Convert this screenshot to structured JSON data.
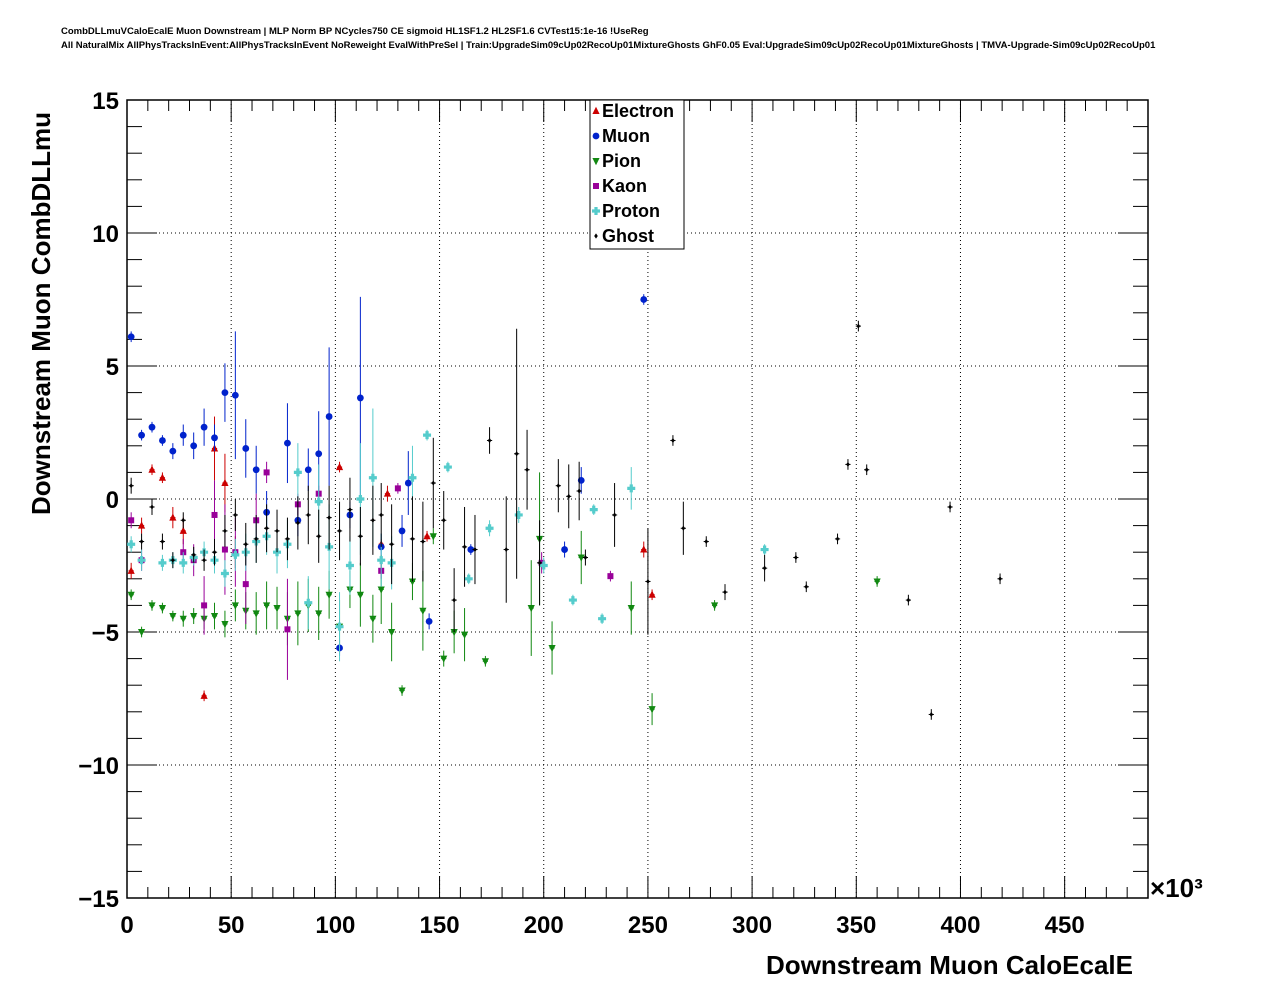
{
  "chart_data": {
    "type": "scatter",
    "title_line1": "CombDLLmuVCaloEcalE Muon Downstream | MLP Norm BP NCycles750 CE sigmoid HL1SF1.2 HL2SF1.6 CVTest15:1e-16 !UseReg",
    "title_line2": "All NaturalMix AllPhysTracksInEvent:AllPhysTracksInEvent NoReweight EvalWithPreSel | Train:UpgradeSim09cUp02RecoUp01MixtureGhosts GhF0.05 Eval:UpgradeSim09cUp02RecoUp01MixtureGhosts | TMVA-Upgrade-Sim09cUp02RecoUp01",
    "xlabel": "Downstream Muon CaloEcalE",
    "ylabel": "Downstream Muon CombDLLmu",
    "x_exponent_label": "×10³",
    "xlim": [
      0,
      490
    ],
    "ylim": [
      -15,
      15
    ],
    "xticks": [
      "0",
      "50",
      "100",
      "150",
      "200",
      "250",
      "300",
      "350",
      "400",
      "450"
    ],
    "xtick_values": [
      0,
      50,
      100,
      150,
      200,
      250,
      300,
      350,
      400,
      450
    ],
    "yticks": [
      "15",
      "10",
      "5",
      "0",
      "−5",
      "−10",
      "−15"
    ],
    "ytick_values": [
      15,
      10,
      5,
      0,
      -5,
      -10,
      -15
    ],
    "grid": true,
    "legend_position": "top-center",
    "series": [
      {
        "name": "Electron",
        "color": "#cc0000",
        "marker": "triangle-up",
        "points": [
          [
            2,
            -2.7,
            0.3
          ],
          [
            7,
            -1.0,
            0.3
          ],
          [
            12,
            1.1,
            0.2
          ],
          [
            17,
            0.8,
            0.2
          ],
          [
            22,
            -0.7,
            0.4
          ],
          [
            27,
            -1.2,
            0.5
          ],
          [
            37,
            -7.4,
            0.2
          ],
          [
            42,
            1.9,
            1.2
          ],
          [
            47,
            0.6,
            1.1
          ],
          [
            52,
            -2.0,
            0.6
          ],
          [
            102,
            1.2,
            0.2
          ],
          [
            122,
            -1.7,
            0.2
          ],
          [
            125,
            0.2,
            0.3
          ],
          [
            144,
            -1.4,
            0.2
          ],
          [
            248,
            -1.9,
            0.3
          ],
          [
            252,
            -3.6,
            0.2
          ]
        ]
      },
      {
        "name": "Muon",
        "color": "#0022cc",
        "marker": "circle",
        "points": [
          [
            2,
            6.1,
            0.2
          ],
          [
            7,
            2.4,
            0.2
          ],
          [
            12,
            2.7,
            0.2
          ],
          [
            17,
            2.2,
            0.2
          ],
          [
            22,
            1.8,
            0.3
          ],
          [
            27,
            2.4,
            0.4
          ],
          [
            32,
            2.0,
            0.5
          ],
          [
            37,
            2.7,
            0.7
          ],
          [
            42,
            2.3,
            0.5
          ],
          [
            47,
            4.0,
            1.1
          ],
          [
            52,
            3.9,
            2.4
          ],
          [
            57,
            1.9,
            1.1
          ],
          [
            62,
            1.1,
            0.9
          ],
          [
            67,
            -0.5,
            0.8
          ],
          [
            77,
            2.1,
            1.5
          ],
          [
            82,
            -0.8,
            0.6
          ],
          [
            87,
            1.1,
            0.8
          ],
          [
            92,
            1.7,
            1.6
          ],
          [
            97,
            3.1,
            2.6
          ],
          [
            102,
            -5.6,
            0.3
          ],
          [
            107,
            -0.6,
            0.5
          ],
          [
            112,
            3.8,
            3.8
          ],
          [
            122,
            -1.8,
            0.5
          ],
          [
            132,
            -1.2,
            0.6
          ],
          [
            135,
            0.6,
            1.2
          ],
          [
            145,
            -4.6,
            0.3
          ],
          [
            165,
            -1.9,
            0.2
          ],
          [
            210,
            -1.9,
            0.3
          ],
          [
            218,
            0.7,
            0.5
          ],
          [
            248,
            7.5,
            0.2
          ]
        ]
      },
      {
        "name": "Pion",
        "color": "#118811",
        "marker": "triangle-down",
        "points": [
          [
            2,
            -3.6,
            0.2
          ],
          [
            7,
            -5.0,
            0.2
          ],
          [
            12,
            -4.0,
            0.2
          ],
          [
            17,
            -4.1,
            0.2
          ],
          [
            22,
            -4.4,
            0.2
          ],
          [
            27,
            -4.5,
            0.3
          ],
          [
            32,
            -4.4,
            0.3
          ],
          [
            37,
            -4.5,
            0.4
          ],
          [
            42,
            -4.4,
            0.5
          ],
          [
            47,
            -4.7,
            0.5
          ],
          [
            52,
            -4.0,
            0.6
          ],
          [
            57,
            -4.2,
            0.7
          ],
          [
            62,
            -4.3,
            0.8
          ],
          [
            67,
            -4.0,
            0.9
          ],
          [
            72,
            -4.1,
            0.8
          ],
          [
            77,
            -4.5,
            1.0
          ],
          [
            82,
            -4.3,
            1.2
          ],
          [
            87,
            -4.0,
            1.0
          ],
          [
            92,
            -4.3,
            1.0
          ],
          [
            97,
            -3.6,
            0.9
          ],
          [
            102,
            -4.8,
            1.0
          ],
          [
            107,
            -3.4,
            0.7
          ],
          [
            112,
            -3.6,
            1.2
          ],
          [
            118,
            -4.5,
            0.9
          ],
          [
            122,
            -3.4,
            1.3
          ],
          [
            127,
            -5.0,
            1.1
          ],
          [
            132,
            -7.2,
            0.2
          ],
          [
            137,
            -3.1,
            0.7
          ],
          [
            142,
            -4.2,
            1.5
          ],
          [
            147,
            -1.4,
            0.3
          ],
          [
            152,
            -6.0,
            0.3
          ],
          [
            157,
            -5.0,
            0.8
          ],
          [
            162,
            -5.1,
            1.0
          ],
          [
            172,
            -6.1,
            0.2
          ],
          [
            194,
            -4.1,
            1.8
          ],
          [
            198,
            -1.5,
            2.5
          ],
          [
            204,
            -5.6,
            1.0
          ],
          [
            218,
            -2.2,
            1.0
          ],
          [
            242,
            -4.1,
            1.0
          ],
          [
            252,
            -7.9,
            0.6
          ],
          [
            282,
            -4.0,
            0.2
          ],
          [
            360,
            -3.1,
            0.2
          ]
        ]
      },
      {
        "name": "Kaon",
        "color": "#990099",
        "marker": "square",
        "points": [
          [
            2,
            -0.8,
            0.3
          ],
          [
            7,
            -2.3,
            0.4
          ],
          [
            27,
            -2.0,
            0.5
          ],
          [
            32,
            -2.3,
            0.6
          ],
          [
            37,
            -4.0,
            1.1
          ],
          [
            42,
            -0.6,
            1.3
          ],
          [
            47,
            -1.9,
            1.7
          ],
          [
            52,
            -2.0,
            1.3
          ],
          [
            57,
            -3.2,
            1.5
          ],
          [
            62,
            -0.8,
            1.0
          ],
          [
            67,
            1.0,
            0.4
          ],
          [
            77,
            -4.9,
            1.9
          ],
          [
            82,
            -0.2,
            0.4
          ],
          [
            92,
            0.2,
            0.3
          ],
          [
            122,
            -2.7,
            0.3
          ],
          [
            130,
            0.4,
            0.2
          ],
          [
            199,
            -2.4,
            0.4
          ],
          [
            232,
            -2.9,
            0.2
          ]
        ]
      },
      {
        "name": "Proton",
        "color": "#55cccc",
        "marker": "cross",
        "points": [
          [
            2,
            -1.7,
            0.3
          ],
          [
            7,
            -2.3,
            0.4
          ],
          [
            17,
            -2.4,
            0.3
          ],
          [
            22,
            -2.3,
            0.3
          ],
          [
            27,
            -2.4,
            0.4
          ],
          [
            32,
            -2.2,
            0.3
          ],
          [
            37,
            -2.0,
            0.4
          ],
          [
            42,
            -2.3,
            0.5
          ],
          [
            47,
            -2.8,
            0.5
          ],
          [
            52,
            -2.1,
            0.6
          ],
          [
            57,
            -2.0,
            0.7
          ],
          [
            62,
            -1.6,
            0.8
          ],
          [
            67,
            -1.4,
            0.7
          ],
          [
            72,
            -2.0,
            0.8
          ],
          [
            77,
            -1.7,
            0.9
          ],
          [
            82,
            1.0,
            1.1
          ],
          [
            87,
            -3.9,
            1.0
          ],
          [
            92,
            -0.1,
            1.4
          ],
          [
            97,
            -1.8,
            1.6
          ],
          [
            102,
            -4.8,
            1.3
          ],
          [
            107,
            -2.5,
            1.1
          ],
          [
            112,
            0.0,
            2.1
          ],
          [
            118,
            0.8,
            2.6
          ],
          [
            122,
            -2.3,
            1.0
          ],
          [
            127,
            -2.4,
            1.0
          ],
          [
            137,
            0.8,
            1.2
          ],
          [
            144,
            2.4,
            0.2
          ],
          [
            154,
            1.2,
            0.2
          ],
          [
            164,
            -3.0,
            0.2
          ],
          [
            174,
            -1.1,
            0.3
          ],
          [
            188,
            -0.6,
            0.3
          ],
          [
            200,
            -2.5,
            0.3
          ],
          [
            214,
            -3.8,
            0.2
          ],
          [
            224,
            -0.4,
            0.2
          ],
          [
            228,
            -4.5,
            0.2
          ],
          [
            242,
            0.4,
            0.8
          ],
          [
            306,
            -1.9,
            0.2
          ]
        ]
      },
      {
        "name": "Ghost",
        "color": "#000000",
        "marker": "diamond",
        "points": [
          [
            2,
            0.5,
            0.3
          ],
          [
            7,
            -1.6,
            0.3
          ],
          [
            12,
            -0.3,
            0.3
          ],
          [
            17,
            -1.6,
            0.3
          ],
          [
            22,
            -2.3,
            0.3
          ],
          [
            27,
            -0.8,
            0.3
          ],
          [
            32,
            -2.1,
            0.3
          ],
          [
            37,
            -2.3,
            0.4
          ],
          [
            42,
            -2.0,
            0.5
          ],
          [
            47,
            -1.2,
            0.6
          ],
          [
            52,
            -0.6,
            0.6
          ],
          [
            57,
            -1.7,
            0.8
          ],
          [
            62,
            -1.5,
            0.9
          ],
          [
            67,
            -1.1,
            0.9
          ],
          [
            72,
            -1.2,
            0.8
          ],
          [
            77,
            -1.5,
            0.8
          ],
          [
            82,
            -0.9,
            1.0
          ],
          [
            87,
            -0.6,
            1.1
          ],
          [
            92,
            -1.4,
            1.0
          ],
          [
            97,
            -0.7,
            1.2
          ],
          [
            102,
            -1.2,
            1.1
          ],
          [
            107,
            -0.4,
            1.2
          ],
          [
            112,
            -1.4,
            1.1
          ],
          [
            118,
            -0.8,
            1.3
          ],
          [
            122,
            -0.6,
            1.2
          ],
          [
            127,
            -1.7,
            1.5
          ],
          [
            137,
            -1.5,
            1.6
          ],
          [
            142,
            -1.6,
            1.5
          ],
          [
            147,
            0.6,
            1.7
          ],
          [
            152,
            -0.8,
            1.1
          ],
          [
            157,
            -3.8,
            1.2
          ],
          [
            162,
            -1.8,
            1.5
          ],
          [
            167,
            -1.9,
            1.3
          ],
          [
            174,
            2.2,
            0.5
          ],
          [
            182,
            -1.9,
            2.0
          ],
          [
            187,
            1.7,
            4.7
          ],
          [
            192,
            1.1,
            1.5
          ],
          [
            198,
            -2.4,
            1.6
          ],
          [
            207,
            0.5,
            1.0
          ],
          [
            212,
            0.1,
            1.2
          ],
          [
            217,
            0.3,
            1.1
          ],
          [
            220,
            -2.2,
            0.3
          ],
          [
            234,
            -0.6,
            1.2
          ],
          [
            250,
            -3.1,
            2.0
          ],
          [
            262,
            2.2,
            0.2
          ],
          [
            267,
            -1.1,
            1.0
          ],
          [
            278,
            -1.6,
            0.2
          ],
          [
            287,
            -3.5,
            0.3
          ],
          [
            306,
            -2.6,
            0.5
          ],
          [
            321,
            -2.2,
            0.2
          ],
          [
            326,
            -3.3,
            0.2
          ],
          [
            341,
            -1.5,
            0.2
          ],
          [
            346,
            1.3,
            0.2
          ],
          [
            351,
            6.5,
            0.2
          ],
          [
            355,
            1.1,
            0.2
          ],
          [
            375,
            -3.8,
            0.2
          ],
          [
            386,
            -8.1,
            0.2
          ],
          [
            395,
            -0.3,
            0.2
          ],
          [
            419,
            -3.0,
            0.2
          ]
        ]
      }
    ]
  }
}
